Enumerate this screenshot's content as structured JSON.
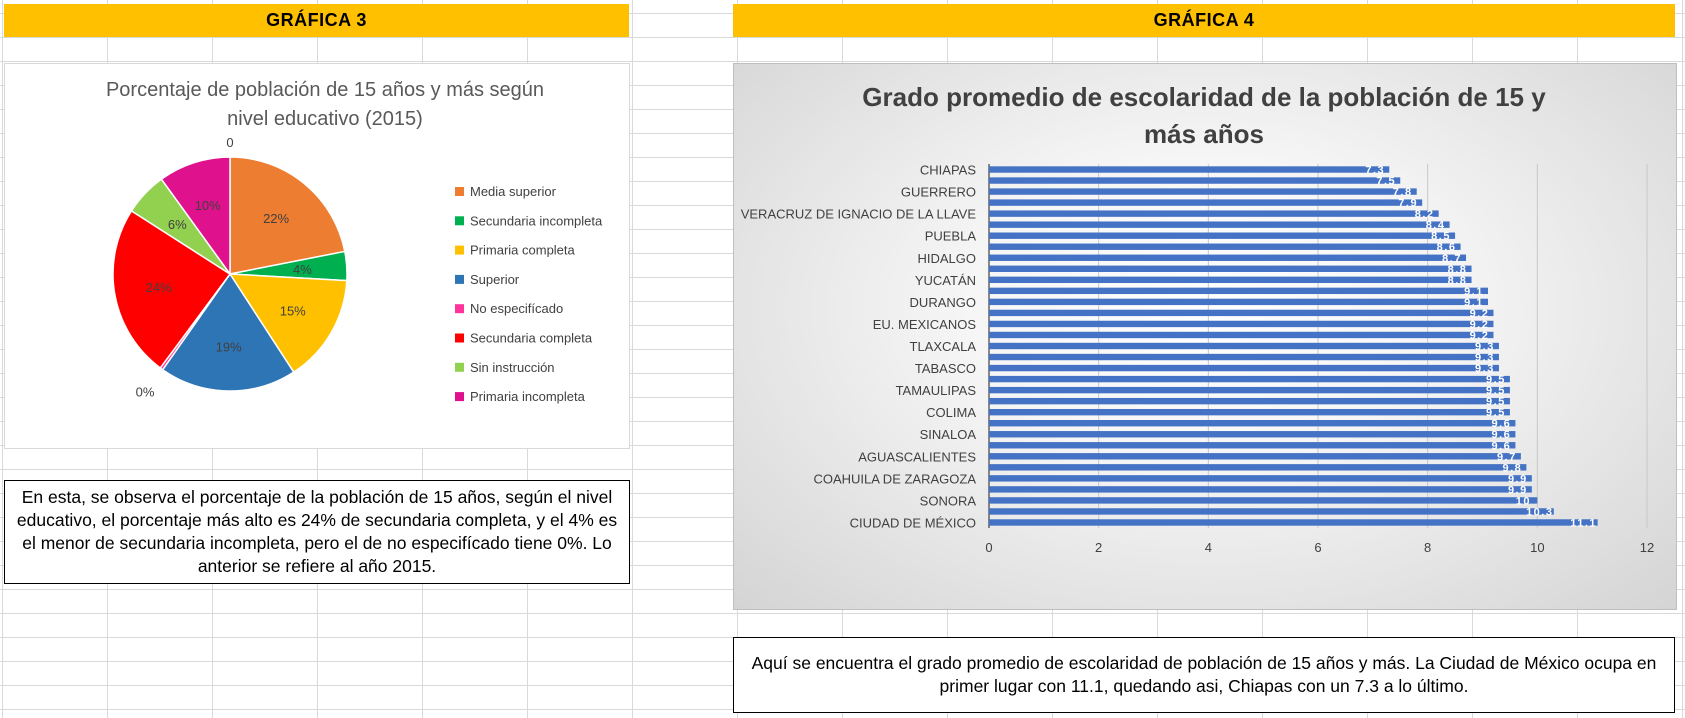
{
  "graph3": {
    "header": "GRÁFICA 3",
    "note": "En esta, se observa el porcentaje de la población de 15 años, según el nivel educativo, el porcentaje más alto es 24% de secundaria completa, y el 4% es el menor de secundaria incompleta, pero el de no especifícado tiene 0%. Lo anterior se refiere al año 2015."
  },
  "graph4": {
    "header": "GRÁFICA 4",
    "note": "Aquí se encuentra el grado promedio de escolaridad de población de 15 años y más. La Ciudad de México ocupa en primer lugar con 11.1, quedando asi, Chiapas con un 7.3 a lo último."
  },
  "chart_data": [
    {
      "type": "pie",
      "title_lines": [
        "Porcentaje de población de 15 años y más según",
        "nivel educativo (2015)"
      ],
      "slices": [
        {
          "name": "Media superior",
          "value": 22,
          "label": "22%",
          "color": "#ed7d31"
        },
        {
          "name": "Secundaria incompleta",
          "value": 4,
          "label": "4%",
          "color": "#00b050"
        },
        {
          "name": "Primaria completa",
          "value": 15,
          "label": "15%",
          "color": "#ffc000"
        },
        {
          "name": "Superior",
          "value": 19,
          "label": "19%",
          "color": "#2e75b6"
        },
        {
          "name": "No especifícado",
          "value": 0.4,
          "label": "0%",
          "color": "#ff3399"
        },
        {
          "name": "Secundaria completa",
          "value": 24,
          "label": "24%",
          "color": "#ff0000"
        },
        {
          "name": "Sin instrucción",
          "value": 6,
          "label": "6%",
          "color": "#92d050"
        },
        {
          "name": "Primaria incompleta",
          "value": 10,
          "label": "10%",
          "color": "#e0118c"
        }
      ],
      "extra_label": "0",
      "legend_position": "right"
    },
    {
      "type": "bar",
      "orientation": "horizontal",
      "title_lines": [
        "Grado promedio de escolaridad de la población de 15 y",
        "más años"
      ],
      "categories": [
        "CHIAPAS",
        "",
        "GUERRERO",
        "",
        "VERACRUZ DE IGNACIO DE LA LLAVE",
        "",
        "PUEBLA",
        "",
        "HIDALGO",
        "",
        "YUCATÁN",
        "",
        "DURANGO",
        "",
        "EU. MEXICANOS",
        "",
        "TLAXCALA",
        "",
        "TABASCO",
        "",
        "TAMAULIPAS",
        "",
        "COLIMA",
        "",
        "SINALOA",
        "",
        "AGUASCALIENTES",
        "",
        "COAHUILA DE ZARAGOZA",
        "",
        "SONORA",
        "",
        "CIUDAD DE MÉXICO"
      ],
      "values": [
        7.3,
        7.5,
        7.8,
        7.9,
        8.2,
        8.4,
        8.5,
        8.6,
        8.7,
        8.8,
        8.8,
        9.1,
        9.1,
        9.2,
        9.2,
        9.2,
        9.3,
        9.3,
        9.3,
        9.5,
        9.5,
        9.5,
        9.5,
        9.6,
        9.6,
        9.6,
        9.7,
        9.8,
        9.9,
        9.9,
        10,
        10.3,
        11.1
      ],
      "xlim": [
        0,
        12
      ],
      "xticks": [
        "0",
        "2",
        "4",
        "6",
        "8",
        "10",
        "12"
      ],
      "bar_color": "#4472c4",
      "grid": true
    }
  ]
}
